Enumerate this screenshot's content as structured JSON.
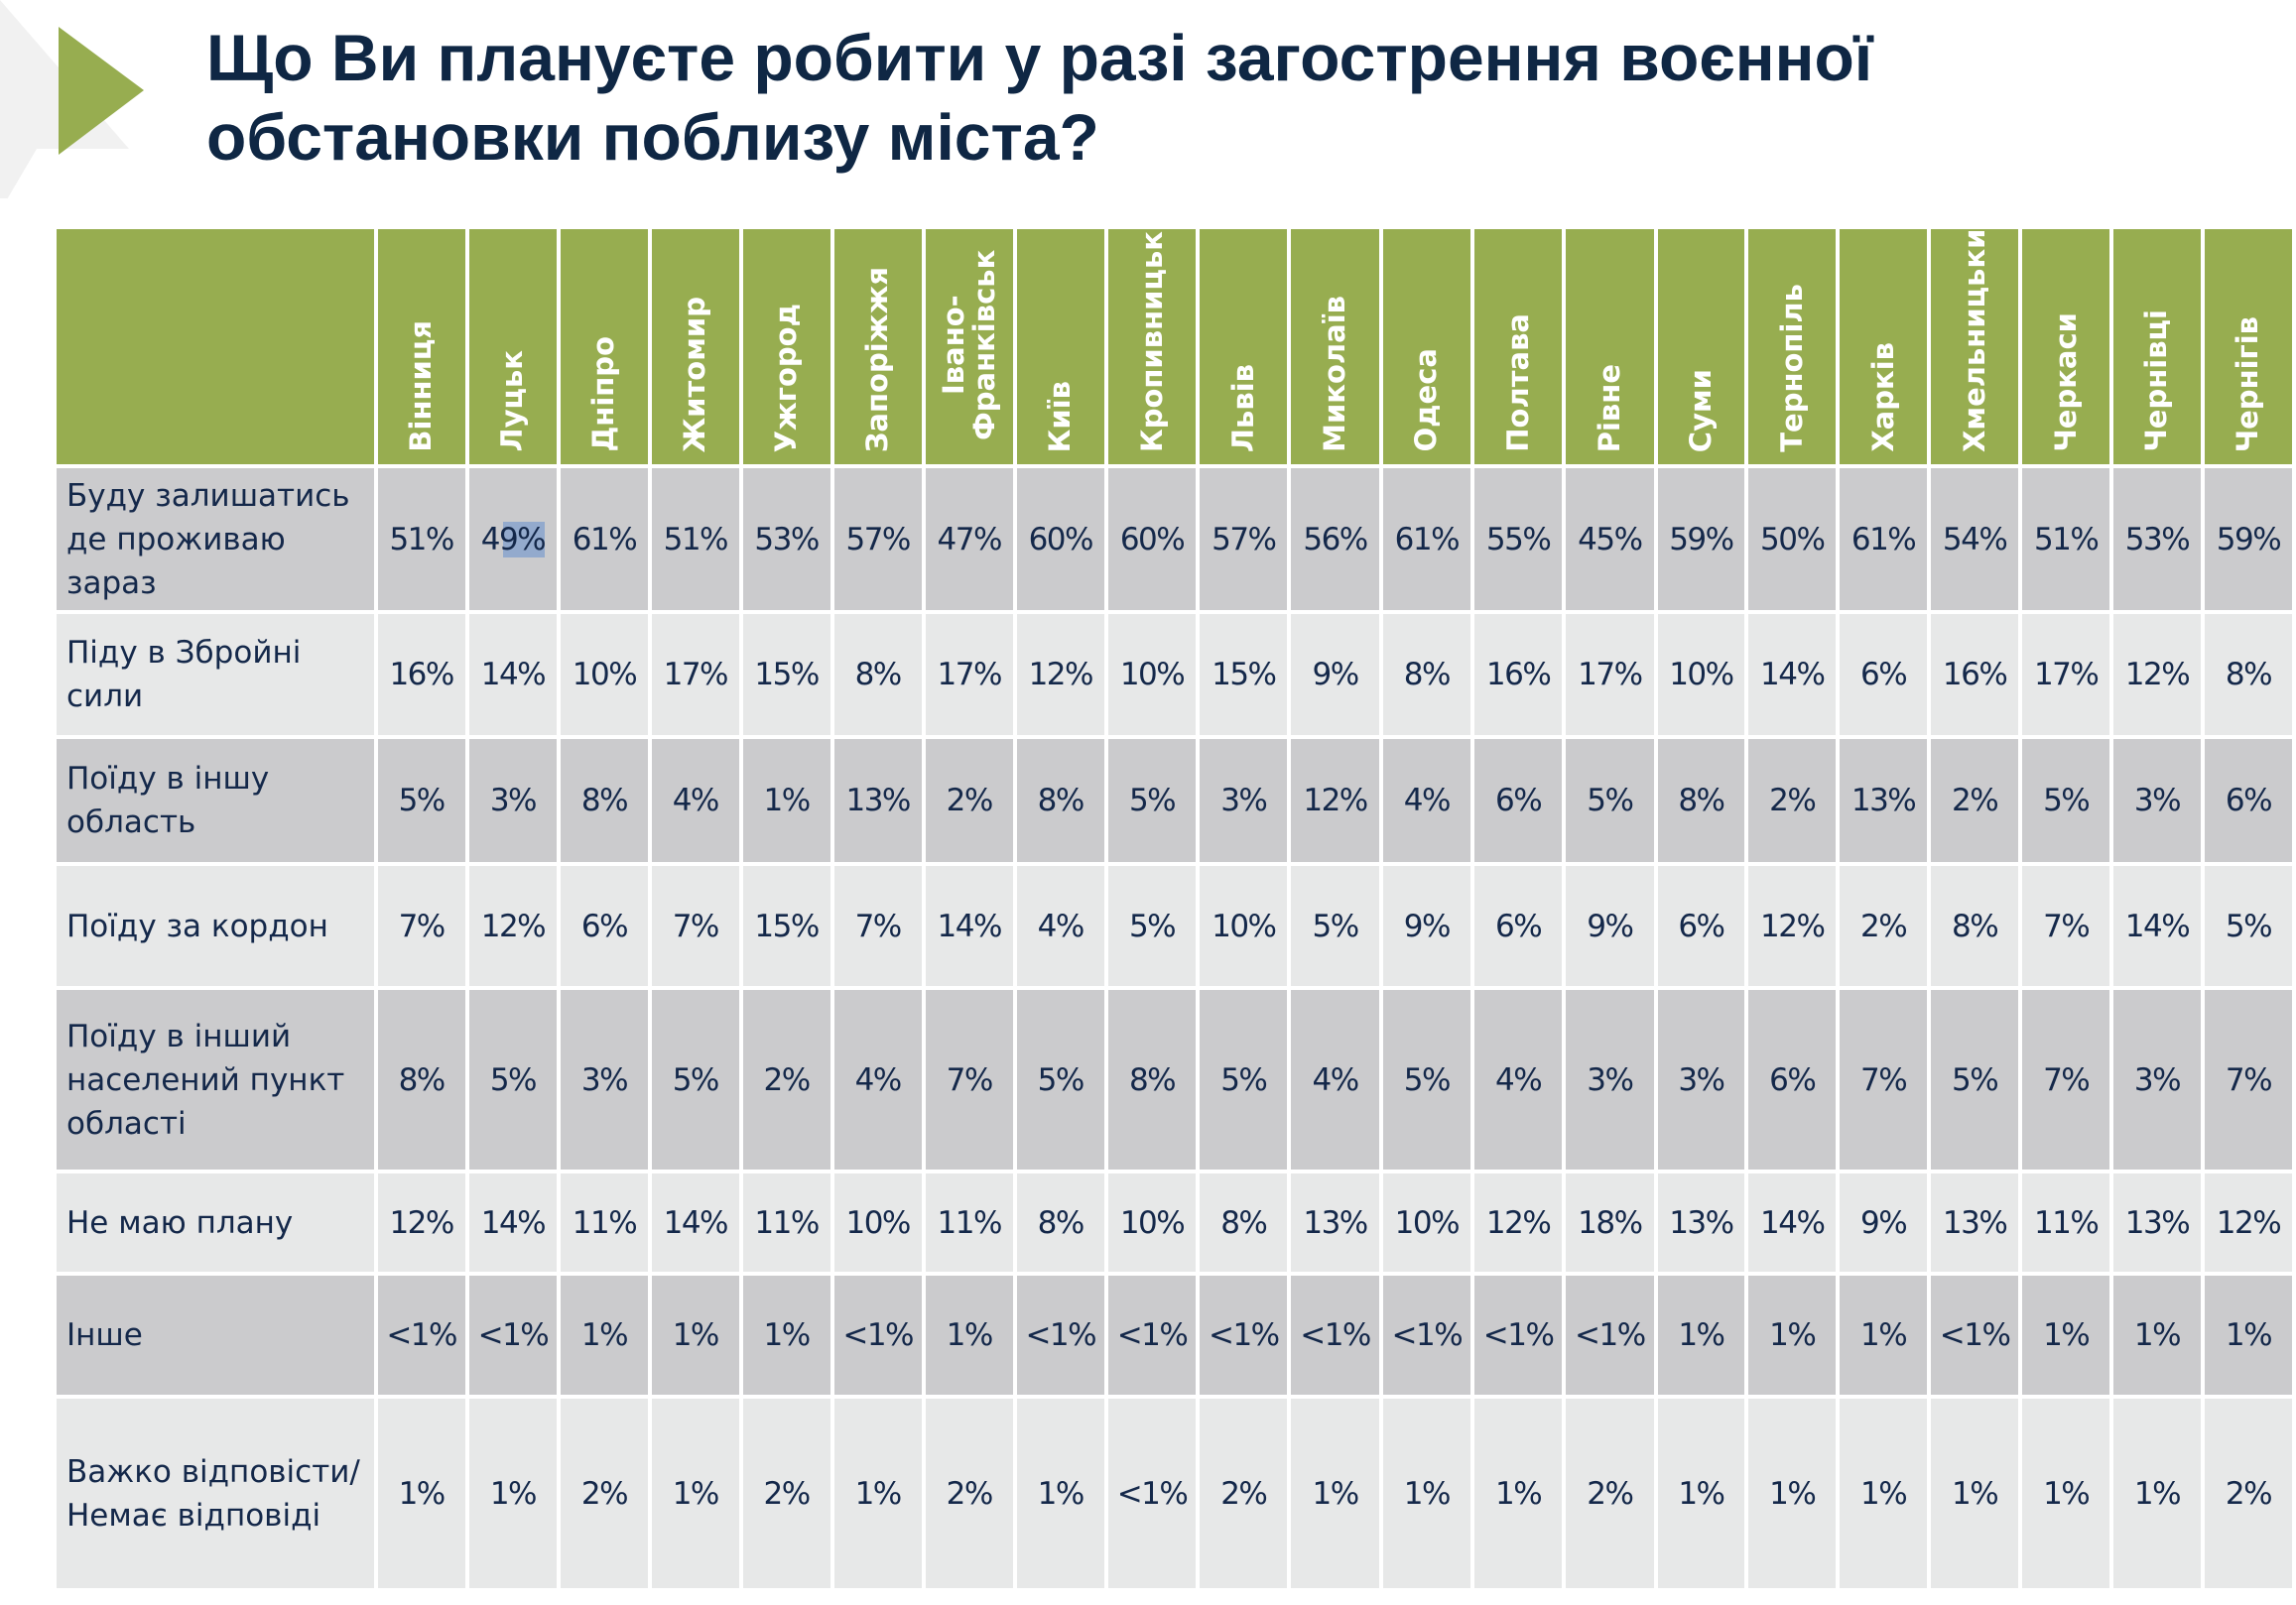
{
  "title": "Що Ви плануєте робити у разі загострення воєнної обстановки поблизу міста?",
  "colors": {
    "header_green": "#97ad50",
    "row_dark": "#cbcbcd",
    "row_light": "#e7e8e8",
    "text_navy": "#14284a",
    "selection_highlight": "#93aacd"
  },
  "table": {
    "columns": [
      "Вінниця",
      "Луцьк",
      "Дніпро",
      "Житомир",
      "Ужгород",
      "Запоріжжя",
      "Івано-Франківськ",
      "Київ",
      "Кропивницький",
      "Львів",
      "Миколаїв",
      "Одеса",
      "Полтава",
      "Рівне",
      "Суми",
      "Тернопіль",
      "Харків",
      "Хмельницький",
      "Черкаси",
      "Чернівці",
      "Чернігів"
    ],
    "rows": [
      {
        "label": "Буду залишатись де проживаю зараз",
        "values": [
          "51%",
          "49%",
          "61%",
          "51%",
          "53%",
          "57%",
          "47%",
          "60%",
          "60%",
          "57%",
          "56%",
          "61%",
          "55%",
          "45%",
          "59%",
          "50%",
          "61%",
          "54%",
          "51%",
          "53%",
          "59%"
        ]
      },
      {
        "label": "Піду в Збройні сили",
        "values": [
          "16%",
          "14%",
          "10%",
          "17%",
          "15%",
          "8%",
          "17%",
          "12%",
          "10%",
          "15%",
          "9%",
          "8%",
          "16%",
          "17%",
          "10%",
          "14%",
          "6%",
          "16%",
          "17%",
          "12%",
          "8%"
        ]
      },
      {
        "label": "Поїду в іншу область",
        "values": [
          "5%",
          "3%",
          "8%",
          "4%",
          "1%",
          "13%",
          "2%",
          "8%",
          "5%",
          "3%",
          "12%",
          "4%",
          "6%",
          "5%",
          "8%",
          "2%",
          "13%",
          "2%",
          "5%",
          "3%",
          "6%"
        ]
      },
      {
        "label": "Поїду за кордон",
        "values": [
          "7%",
          "12%",
          "6%",
          "7%",
          "15%",
          "7%",
          "14%",
          "4%",
          "5%",
          "10%",
          "5%",
          "9%",
          "6%",
          "9%",
          "6%",
          "12%",
          "2%",
          "8%",
          "7%",
          "14%",
          "5%"
        ]
      },
      {
        "label": "Поїду в інший населений пункт області",
        "values": [
          "8%",
          "5%",
          "3%",
          "5%",
          "2%",
          "4%",
          "7%",
          "5%",
          "8%",
          "5%",
          "4%",
          "5%",
          "4%",
          "3%",
          "3%",
          "6%",
          "7%",
          "5%",
          "7%",
          "3%",
          "7%"
        ]
      },
      {
        "label": "Не маю плану",
        "values": [
          "12%",
          "14%",
          "11%",
          "14%",
          "11%",
          "10%",
          "11%",
          "8%",
          "10%",
          "8%",
          "13%",
          "10%",
          "12%",
          "18%",
          "13%",
          "14%",
          "9%",
          "13%",
          "11%",
          "13%",
          "12%"
        ]
      },
      {
        "label": "Інше",
        "values": [
          "<1%",
          "<1%",
          "1%",
          "1%",
          "1%",
          "<1%",
          "1%",
          "<1%",
          "<1%",
          "<1%",
          "<1%",
          "<1%",
          "<1%",
          "<1%",
          "1%",
          "1%",
          "1%",
          "<1%",
          "1%",
          "1%",
          "1%"
        ]
      },
      {
        "label": "Важко відповісти/Немає відповіді",
        "values": [
          "1%",
          "1%",
          "2%",
          "1%",
          "2%",
          "1%",
          "2%",
          "1%",
          "<1%",
          "2%",
          "1%",
          "1%",
          "1%",
          "2%",
          "1%",
          "1%",
          "1%",
          "1%",
          "1%",
          "1%",
          "2%"
        ]
      }
    ],
    "selected_cell": {
      "row": 0,
      "column": "Луцьк"
    }
  }
}
